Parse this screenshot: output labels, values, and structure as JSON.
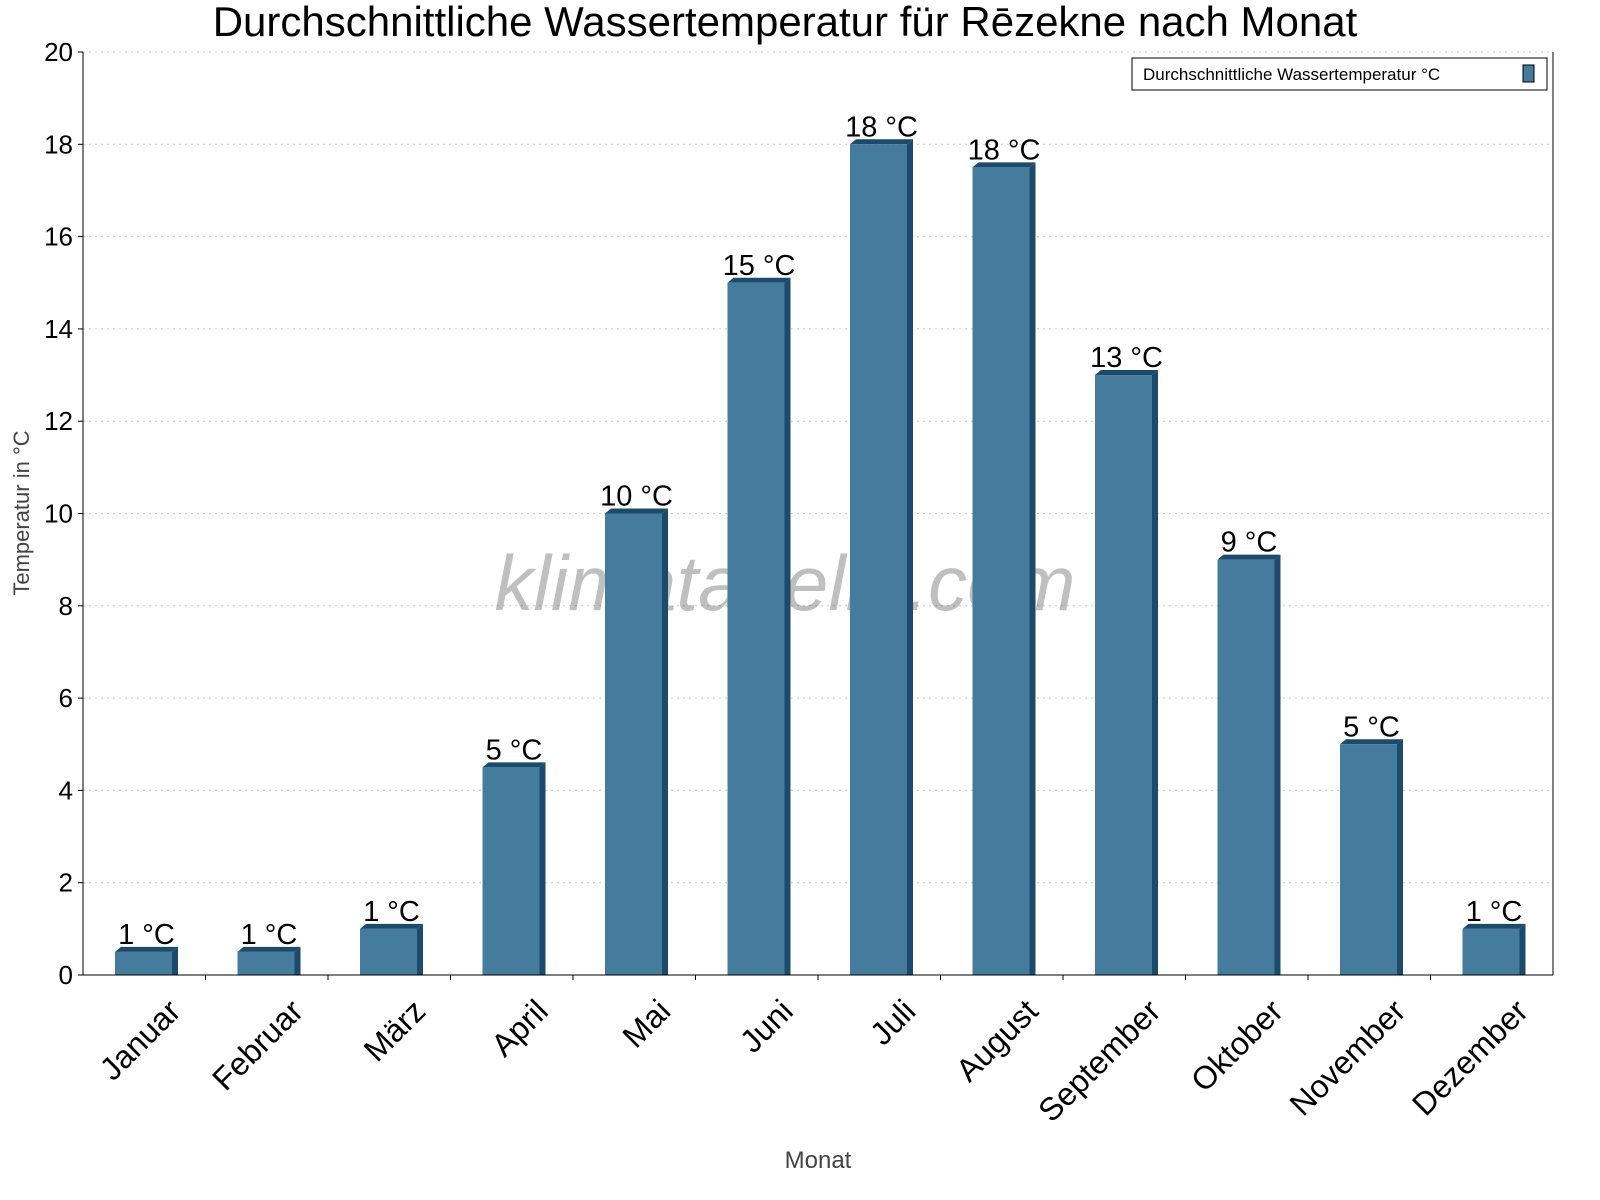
{
  "chart_data": {
    "type": "bar",
    "title": "Durchschnittliche Wassertemperatur für Rēzekne nach Monat",
    "xlabel": "Monat",
    "ylabel": "Temperatur in °C",
    "ylim": [
      0,
      20
    ],
    "yticks": [
      "0",
      "2",
      "4",
      "6",
      "8",
      "10",
      "12",
      "14",
      "16",
      "18",
      "20"
    ],
    "grid": true,
    "legend_position": "top-right",
    "categories": [
      "Januar",
      "Februar",
      "März",
      "April",
      "Mai",
      "Juni",
      "Juli",
      "August",
      "September",
      "Oktober",
      "November",
      "Dezember"
    ],
    "series": [
      {
        "name": "Durchschnittliche Wassertemperatur °C",
        "values": [
          0.5,
          0.5,
          1,
          4.5,
          10,
          15,
          18,
          17.5,
          13,
          9,
          5,
          1
        ],
        "labels": [
          "1 °C",
          "1 °C",
          "1 °C",
          "5 °C",
          "10 °C",
          "15 °C",
          "18 °C",
          "18 °C",
          "13 °C",
          "9 °C",
          "5 °C",
          "1 °C"
        ],
        "color": "#457b9d",
        "shade_color": "#1b4a6b"
      }
    ],
    "watermark": "klimatabelle.com"
  }
}
